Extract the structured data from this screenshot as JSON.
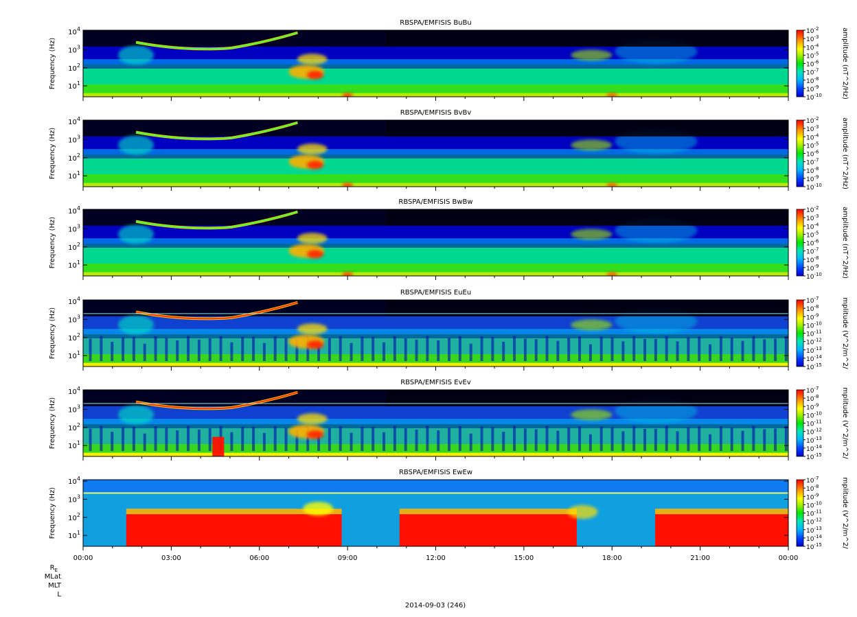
{
  "figure": {
    "date_label": "2014-09-03 (246)",
    "ephemeris_labels": [
      "R",
      "MLat",
      "MLT",
      "L"
    ],
    "ephemeris_subscript": "E"
  },
  "chart_data": [
    {
      "type": "heatmap",
      "title": "RBSPA/EMFISIS  BuBu",
      "ylabel": "Frequency (Hz)",
      "yscale": "log",
      "ylim": [
        2.5,
        12000
      ],
      "yticks": [
        "10",
        "10",
        "10",
        "10"
      ],
      "yticks_exp": [
        "1",
        "2",
        "3",
        "4"
      ],
      "colorbar_label": "amplitude (nT^2/Hz)",
      "colorbar_scale": "log",
      "colorbar_ticks": [
        "10",
        "10",
        "10",
        "10",
        "10",
        "10",
        "10",
        "10",
        "10"
      ],
      "colorbar_ticks_exp": [
        "-2",
        "-3",
        "-4",
        "-5",
        "-6",
        "-7",
        "-8",
        "-9",
        "-10"
      ]
    },
    {
      "type": "heatmap",
      "title": "RBSPA/EMFISIS  BvBv",
      "ylabel": "Frequency (Hz)",
      "yscale": "log",
      "ylim": [
        2.5,
        12000
      ],
      "yticks": [
        "10",
        "10",
        "10",
        "10"
      ],
      "yticks_exp": [
        "1",
        "2",
        "3",
        "4"
      ],
      "colorbar_label": "amplitude (nT^2/Hz)",
      "colorbar_scale": "log",
      "colorbar_ticks": [
        "10",
        "10",
        "10",
        "10",
        "10",
        "10",
        "10",
        "10",
        "10"
      ],
      "colorbar_ticks_exp": [
        "-2",
        "-3",
        "-4",
        "-5",
        "-6",
        "-7",
        "-8",
        "-9",
        "-10"
      ]
    },
    {
      "type": "heatmap",
      "title": "RBSPA/EMFISIS  BwBw",
      "ylabel": "Frequency (Hz)",
      "yscale": "log",
      "ylim": [
        2.5,
        12000
      ],
      "yticks": [
        "10",
        "10",
        "10",
        "10"
      ],
      "yticks_exp": [
        "1",
        "2",
        "3",
        "4"
      ],
      "colorbar_label": "amplitude (nT^2/Hz)",
      "colorbar_scale": "log",
      "colorbar_ticks": [
        "10",
        "10",
        "10",
        "10",
        "10",
        "10",
        "10",
        "10",
        "10"
      ],
      "colorbar_ticks_exp": [
        "-2",
        "-3",
        "-4",
        "-5",
        "-6",
        "-7",
        "-8",
        "-9",
        "-10"
      ]
    },
    {
      "type": "heatmap",
      "title": "RBSPA/EMFISIS  EuEu",
      "ylabel": "Frequency (Hz)",
      "yscale": "log",
      "ylim": [
        2.5,
        12000
      ],
      "yticks": [
        "10",
        "10",
        "10",
        "10"
      ],
      "yticks_exp": [
        "1",
        "2",
        "3",
        "4"
      ],
      "colorbar_label": "mplitude (V^2/m^2/",
      "colorbar_scale": "log",
      "colorbar_ticks": [
        "10",
        "10",
        "10",
        "10",
        "10",
        "10",
        "10",
        "10",
        "10"
      ],
      "colorbar_ticks_exp": [
        "-7",
        "-8",
        "-9",
        "-10",
        "-11",
        "-12",
        "-13",
        "-14",
        "-15"
      ]
    },
    {
      "type": "heatmap",
      "title": "RBSPA/EMFISIS  EvEv",
      "ylabel": "Frequency (Hz)",
      "yscale": "log",
      "ylim": [
        2.5,
        12000
      ],
      "yticks": [
        "10",
        "10",
        "10",
        "10"
      ],
      "yticks_exp": [
        "1",
        "2",
        "3",
        "4"
      ],
      "colorbar_label": "mplitude (V^2/m^2/",
      "colorbar_scale": "log",
      "colorbar_ticks": [
        "10",
        "10",
        "10",
        "10",
        "10",
        "10",
        "10",
        "10",
        "10"
      ],
      "colorbar_ticks_exp": [
        "-7",
        "-8",
        "-9",
        "-10",
        "-11",
        "-12",
        "-13",
        "-14",
        "-15"
      ]
    },
    {
      "type": "heatmap",
      "title": "RBSPA/EMFISIS  EwEw",
      "ylabel": "Frequency (Hz)",
      "yscale": "log",
      "ylim": [
        2.5,
        12000
      ],
      "yticks": [
        "10",
        "10",
        "10",
        "10"
      ],
      "yticks_exp": [
        "1",
        "2",
        "3",
        "4"
      ],
      "colorbar_label": "mplitude (V^2/m^2/",
      "colorbar_scale": "log",
      "colorbar_ticks": [
        "10",
        "10",
        "10",
        "10",
        "10",
        "10",
        "10",
        "10",
        "10"
      ],
      "colorbar_ticks_exp": [
        "-7",
        "-8",
        "-9",
        "-10",
        "-11",
        "-12",
        "-13",
        "-14",
        "-15"
      ],
      "xticks": [
        "00:00",
        "03:00",
        "06:00",
        "09:00",
        "12:00",
        "15:00",
        "18:00",
        "21:00",
        "00:00"
      ],
      "xlim_hours": [
        0,
        24
      ]
    }
  ]
}
